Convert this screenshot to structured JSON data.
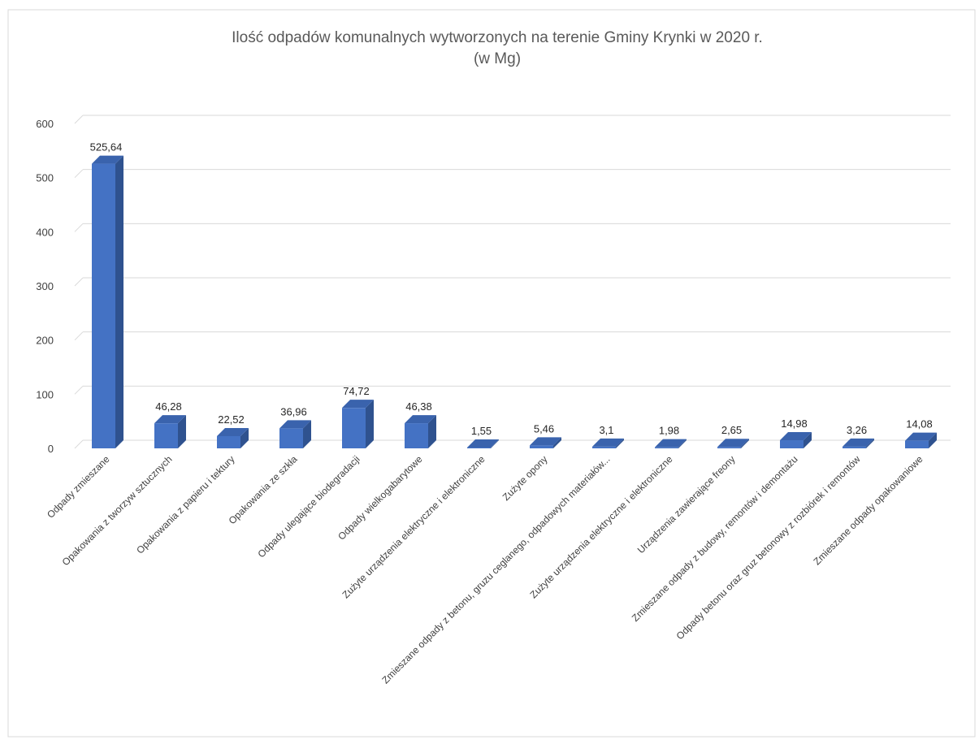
{
  "chart_data": {
    "type": "bar",
    "title": "Ilość odpadów komunalnych wytworzonych na terenie Gminy Krynki w 2020 r.",
    "subtitle": "(w Mg)",
    "xlabel": "",
    "ylabel": "",
    "ylim": [
      0,
      600
    ],
    "yticks": [
      "0",
      "100",
      "200",
      "300",
      "400",
      "500",
      "600"
    ],
    "grid": true,
    "legend": "none",
    "bar_color": "#4472C4",
    "bar_side_color": "#2F528F",
    "bar_top_color": "#3A63AD",
    "categories": [
      "Odpady zmieszane",
      "Opakowania z tworzyw sztucznych",
      "Opakowania z papieru i tektury",
      "Opakowania ze szkła",
      "Odpady ulegające biodegradacji",
      "Odpady wielkogabarytowe",
      "Zużyte urządzenia elektryczne i elektroniczne",
      "Zużyte opony",
      "Zmieszane odpady z betonu, gruzu ceglanego, odpadowych materiałów...",
      "Zużyte urządzenia elektryczne i elektroniczne",
      "Urządzenia zawierające freony",
      "Zmieszane odpady z budowy, remontów i demontażu",
      "Odpady betonu oraz gruz betonowy z rozbiórek i remontów",
      "Zmieszane odpady opakowaniowe"
    ],
    "values": [
      525.64,
      46.28,
      22.52,
      36.96,
      74.72,
      46.38,
      1.55,
      5.46,
      3.1,
      1.98,
      2.65,
      14.98,
      3.26,
      14.08
    ],
    "data_labels": [
      "525,64",
      "46,28",
      "22,52",
      "36,96",
      "74,72",
      "46,38",
      "1,55",
      "5,46",
      "3,1",
      "1,98",
      "2,65",
      "14,98",
      "3,26",
      "14,08"
    ]
  }
}
